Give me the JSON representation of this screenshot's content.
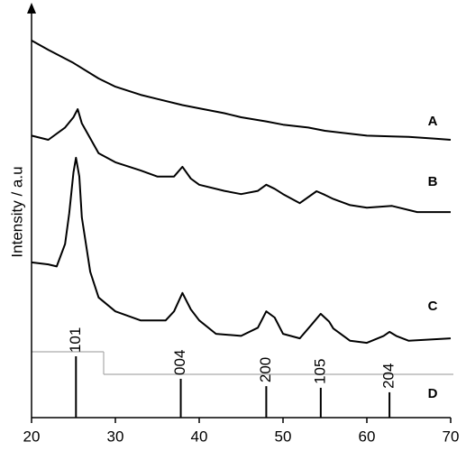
{
  "chart_data": {
    "type": "line",
    "ylabel": "Intensity / a.u",
    "xlim": [
      20,
      70
    ],
    "xticks": [
      20,
      30,
      40,
      50,
      60,
      70
    ],
    "ylim": [
      0,
      100
    ],
    "series": [
      {
        "name": "A",
        "color": "#000000",
        "x": [
          20,
          22,
          25,
          28,
          30,
          33,
          35,
          38,
          40,
          43,
          45,
          48,
          50,
          53,
          55,
          58,
          60,
          63,
          65,
          68,
          70
        ],
        "values": [
          92.3,
          90,
          86.8,
          83,
          81,
          79,
          78,
          76.5,
          75.7,
          74.5,
          73.5,
          72.5,
          71.7,
          71,
          70.2,
          69.5,
          69,
          68.8,
          68.7,
          68.3,
          68
        ]
      },
      {
        "name": "B",
        "color": "#000000",
        "x": [
          20,
          22,
          24,
          25,
          25.5,
          26,
          28,
          30,
          33,
          35,
          37,
          38,
          39,
          40,
          43,
          45,
          47,
          48,
          49,
          50,
          52,
          54,
          55,
          56,
          58,
          60,
          63,
          66,
          70
        ],
        "values": [
          69,
          68,
          71,
          73.5,
          75.5,
          72,
          64.7,
          62.5,
          60.5,
          59,
          59,
          61.4,
          58.5,
          57,
          55.5,
          54.7,
          55.5,
          57,
          56,
          54.7,
          52.5,
          55.4,
          54.5,
          53.5,
          52,
          51.4,
          51.8,
          50.3,
          50.3
        ]
      },
      {
        "name": "C",
        "color": "#000000",
        "x": [
          20,
          22,
          23,
          24,
          24.5,
          25,
          25.3,
          25.7,
          26,
          27,
          28,
          30,
          33,
          36,
          37,
          38,
          39,
          40,
          42,
          45,
          47,
          48,
          49,
          50,
          52,
          53.5,
          54.5,
          55.5,
          56,
          58,
          60,
          62,
          62.7,
          63.5,
          65,
          70
        ],
        "values": [
          38,
          37.5,
          37,
          42.5,
          50,
          60,
          63.6,
          59,
          49,
          35.7,
          29.4,
          26,
          23.8,
          23.8,
          26,
          30.5,
          26.5,
          23.8,
          20.5,
          20,
          22,
          26,
          24.5,
          20.5,
          19.4,
          23,
          25.4,
          23.5,
          21.8,
          18.8,
          18.3,
          20,
          21,
          20,
          18.8,
          19.4
        ]
      }
    ],
    "sticks": {
      "name": "D",
      "color": "#000000",
      "x": [
        25.3,
        37.8,
        48.0,
        54.5,
        62.7
      ],
      "values": [
        15,
        9.5,
        7.7,
        7.3,
        6.2
      ],
      "labels": [
        "101",
        "004",
        "200",
        "105",
        "204"
      ]
    }
  }
}
